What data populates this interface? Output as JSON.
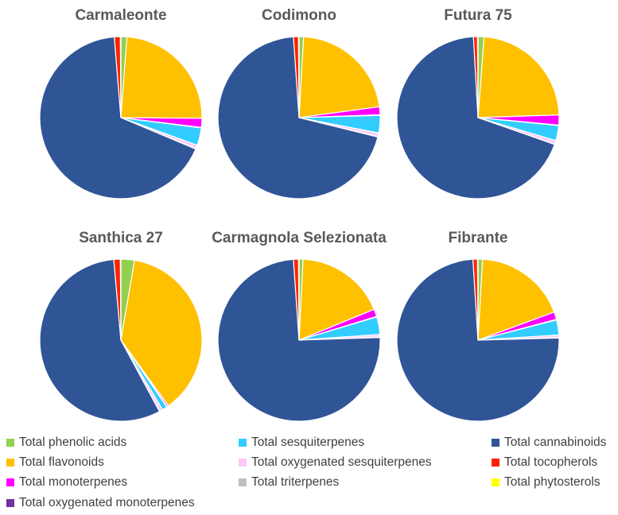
{
  "chart_data": {
    "type": "pie",
    "series_order": [
      "Total phenolic acids",
      "Total flavonoids",
      "Total monoterpenes",
      "Total oxygenated monoterpenes",
      "Total sesquiterpenes",
      "Total oxygenated sesquiterpenes",
      "Total triterpenes",
      "Total cannabinoids",
      "Total tocopherols",
      "Total phytosterols"
    ],
    "colors": {
      "Total phenolic acids": "#92D050",
      "Total flavonoids": "#FFC000",
      "Total monoterpenes": "#FF00FF",
      "Total oxygenated monoterpenes": "#7030A0",
      "Total sesquiterpenes": "#33CCFF",
      "Total oxygenated sesquiterpenes": "#FFC9F5",
      "Total triterpenes": "#BFBFBF",
      "Total cannabinoids": "#2F5597",
      "Total tocopherols": "#FF2200",
      "Total phytosterols": "#FFFF00"
    },
    "pies": [
      {
        "title": "Carmaleonte",
        "values": [
          1.2,
          24.0,
          1.8,
          0.1,
          3.5,
          0.7,
          0.1,
          67.5,
          1.2,
          0.1
        ]
      },
      {
        "title": "Codimono",
        "values": [
          0.9,
          22.0,
          1.6,
          0.1,
          3.5,
          0.7,
          0.1,
          70.2,
          1.0,
          0.1
        ]
      },
      {
        "title": "Futura 75",
        "values": [
          1.2,
          23.3,
          2.0,
          0.1,
          3.0,
          0.7,
          0.1,
          68.8,
          0.8,
          0.1
        ]
      },
      {
        "title": "Santhica 27",
        "values": [
          2.7,
          37.4,
          0.3,
          0.1,
          1.0,
          0.6,
          0.1,
          56.6,
          1.3,
          0.1
        ]
      },
      {
        "title": "Carmagnola Selezionata",
        "values": [
          0.8,
          18.0,
          1.5,
          0.1,
          3.5,
          0.5,
          0.1,
          74.5,
          1.0,
          0.1
        ]
      },
      {
        "title": "Fibrante",
        "values": [
          0.9,
          18.5,
          1.5,
          0.1,
          3.0,
          0.5,
          0.1,
          74.5,
          0.9,
          0.1
        ]
      }
    ]
  },
  "legend": [
    "Total phenolic acids",
    "Total sesquiterpenes",
    "Total cannabinoids",
    "Total flavonoids",
    "Total oxygenated sesquiterpenes",
    "Total tocopherols",
    "Total monoterpenes",
    "Total triterpenes",
    "Total phytosterols",
    "Total oxygenated monoterpenes"
  ]
}
